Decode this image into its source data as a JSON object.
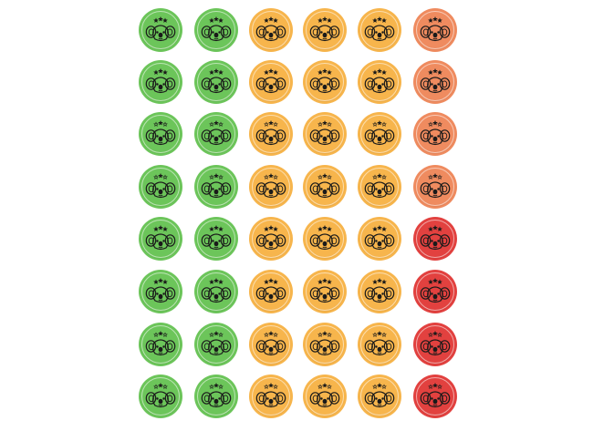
{
  "sheet": {
    "title": "",
    "colors": {
      "green": "#6cc55a",
      "orange": "#f7b54c",
      "salmon": "#ef8b5f",
      "red": "#e2413f"
    },
    "icon": "koala-face-icon",
    "stars_icon": "three-stars-icon",
    "rows": [
      {
        "stars": "filled",
        "colors": [
          "green",
          "green",
          "orange",
          "orange",
          "orange",
          "salmon"
        ]
      },
      {
        "stars": "filled",
        "colors": [
          "green",
          "green",
          "orange",
          "orange",
          "orange",
          "salmon"
        ]
      },
      {
        "stars": "mixed",
        "colors": [
          "green",
          "green",
          "orange",
          "orange",
          "orange",
          "salmon"
        ]
      },
      {
        "stars": "mixed",
        "colors": [
          "green",
          "green",
          "orange",
          "orange",
          "orange",
          "salmon"
        ]
      },
      {
        "stars": "filled",
        "colors": [
          "green",
          "green",
          "orange",
          "orange",
          "orange",
          "red"
        ]
      },
      {
        "stars": "filled",
        "colors": [
          "green",
          "green",
          "orange",
          "orange",
          "orange",
          "red"
        ]
      },
      {
        "stars": "mixed",
        "colors": [
          "green",
          "green",
          "orange",
          "orange",
          "orange",
          "red"
        ]
      },
      {
        "stars": "mixed",
        "colors": [
          "green",
          "green",
          "orange",
          "orange",
          "orange",
          "red"
        ]
      }
    ]
  }
}
